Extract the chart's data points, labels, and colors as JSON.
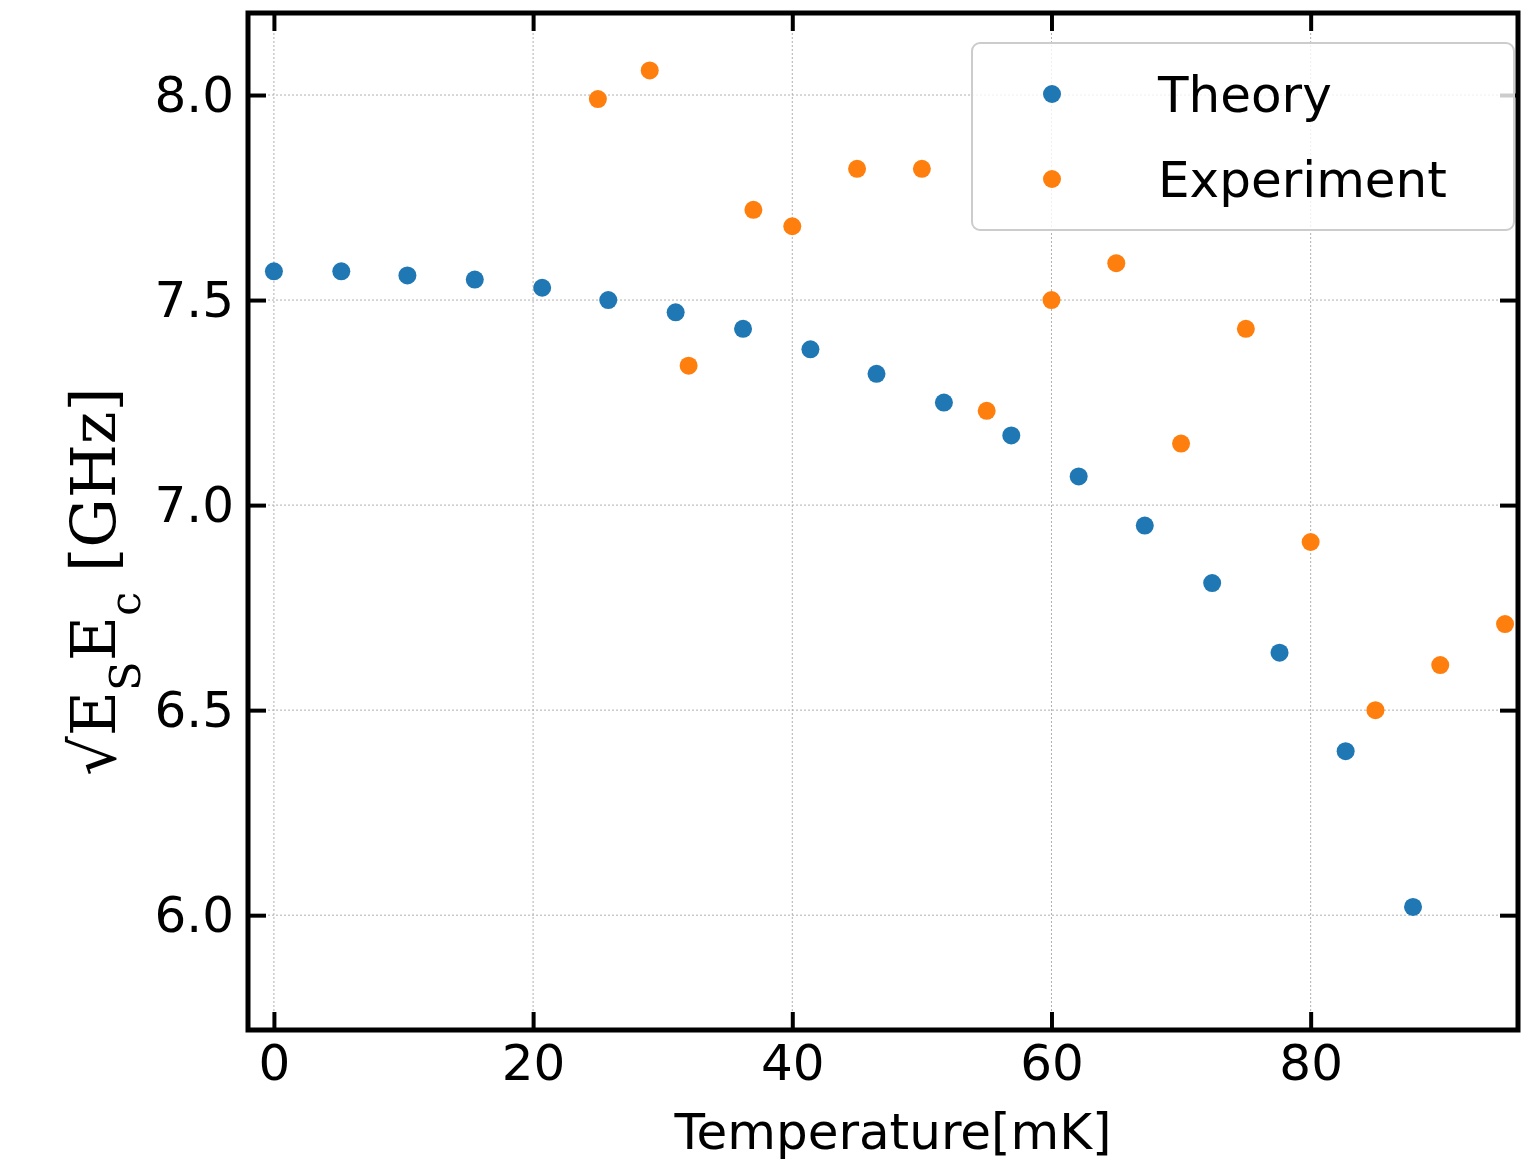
{
  "chart_data": {
    "type": "scatter",
    "xlabel": "Temperature[mK]",
    "ylabel": "√E$_{S}$E$_{c}$ [GHz]",
    "xlim": [
      -2,
      96
    ],
    "ylim": [
      5.72,
      8.2
    ],
    "xticks": [
      0,
      20,
      40,
      60,
      80
    ],
    "yticks": [
      {
        "value": 6,
        "label": "6.0"
      },
      {
        "value": 6.5,
        "label": "6.5"
      },
      {
        "value": 7,
        "label": "7.0"
      },
      {
        "value": 7.5,
        "label": "7.5"
      },
      {
        "value": 8,
        "label": "8.0"
      }
    ],
    "grid": true,
    "legend": "top right",
    "marker": "circle",
    "series": [
      {
        "name": "Theory",
        "color": "#1f77b4",
        "x": [
          0,
          5.2,
          10.3,
          15.5,
          20.7,
          25.8,
          31.0,
          36.2,
          41.4,
          46.5,
          51.7,
          56.9,
          62.1,
          67.2,
          72.4,
          77.6,
          82.7,
          87.9
        ],
        "values": [
          7.57,
          7.57,
          7.56,
          7.55,
          7.53,
          7.5,
          7.47,
          7.43,
          7.38,
          7.32,
          7.25,
          7.17,
          7.07,
          6.95,
          6.81,
          6.64,
          6.4,
          6.02
        ]
      },
      {
        "name": "Experiment",
        "color": "#ff7f0e",
        "x": [
          25,
          29,
          32,
          37,
          40,
          45,
          50,
          55,
          60,
          65,
          70,
          75,
          80,
          85,
          90,
          95
        ],
        "values": [
          7.99,
          8.06,
          7.34,
          7.72,
          7.68,
          7.82,
          7.82,
          7.23,
          7.5,
          7.59,
          7.15,
          7.43,
          6.91,
          6.5,
          6.61,
          6.71
        ]
      }
    ]
  }
}
